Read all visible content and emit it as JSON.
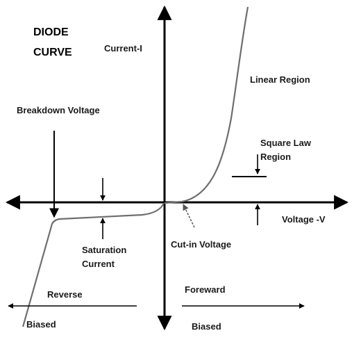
{
  "title": {
    "line1": "DIODE",
    "line2": "CURVE"
  },
  "axes": {
    "y_label": "Current-I",
    "x_label": "Voltage -V"
  },
  "labels": {
    "linear_region": "Linear Region",
    "breakdown_voltage": "Breakdown Voltage",
    "square_law_line1": "Square Law",
    "square_law_line2": "Region",
    "saturation_line1": "Saturation",
    "saturation_line2": "Current",
    "cut_in_voltage": "Cut-in Voltage",
    "reverse": "Reverse",
    "reverse_biased": "Biased",
    "forward": "Foreward",
    "forward_biased": "Biased"
  },
  "colors": {
    "line": "#000000",
    "curve": "#6e6e6e",
    "text": "#1a1a1a"
  }
}
